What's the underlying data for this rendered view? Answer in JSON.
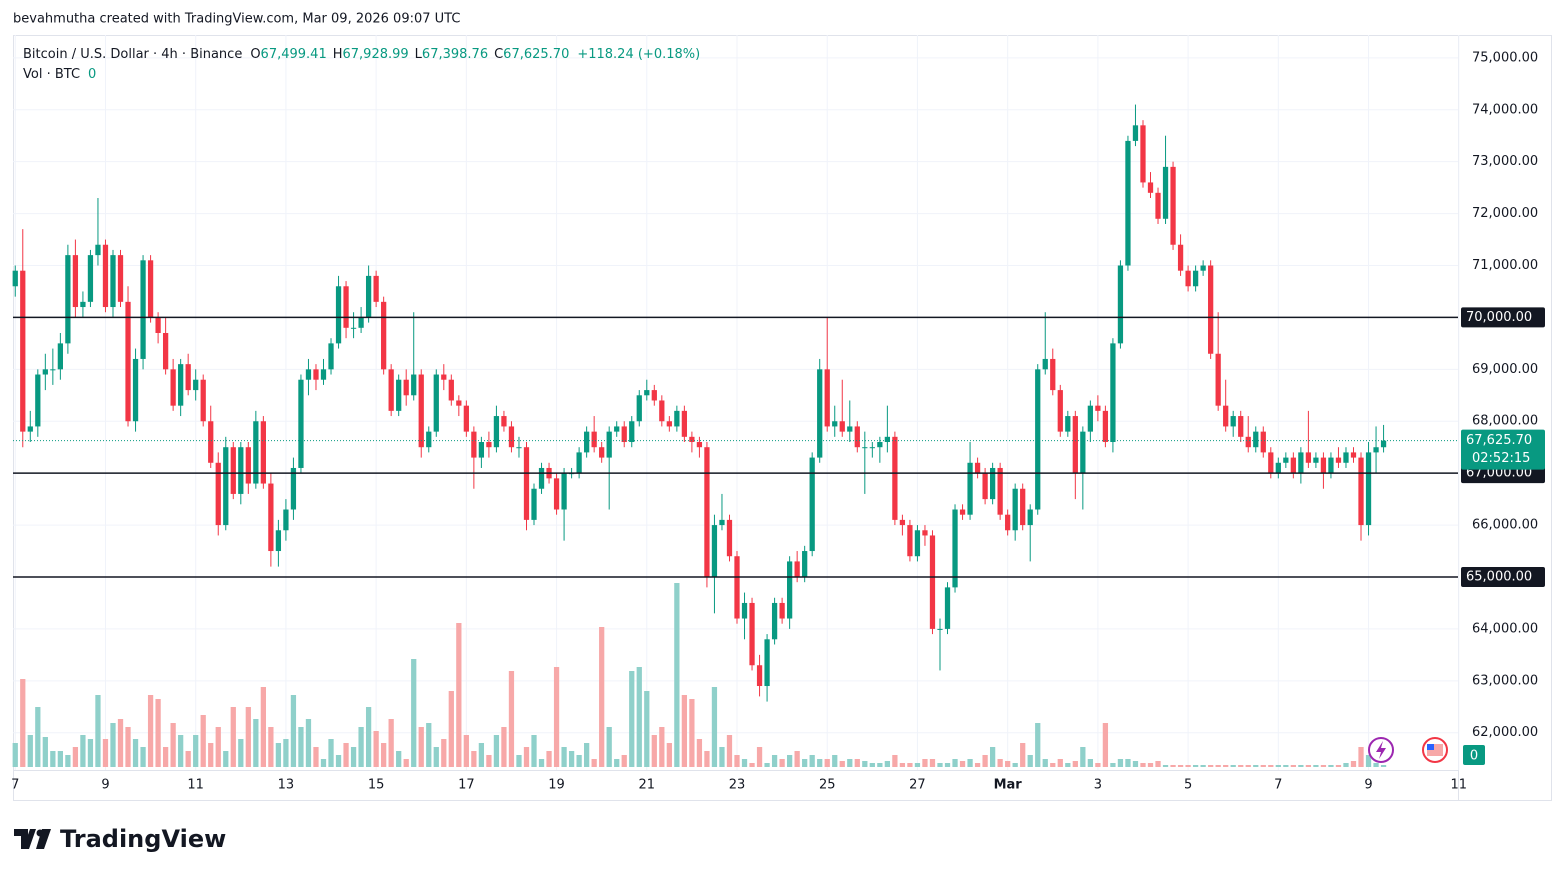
{
  "header": {
    "attribution": "bevahmutha created with TradingView.com, Mar 09, 2026 09:07 UTC"
  },
  "chart_data": {
    "type": "candlestick",
    "title": "Bitcoin / U.S. Dollar · 4h · Binance",
    "ohlc_labels": [
      "O",
      "H",
      "L",
      "C"
    ],
    "ohlc_values": [
      "67,499.41",
      "67,928.99",
      "67,398.76",
      "67,625.70"
    ],
    "change": "+118.24 (+0.18%)",
    "volume_title": "Vol · BTC",
    "volume_value": "0",
    "up_color": "#089981",
    "down_color": "#f23645",
    "up_volume_color": "#8fd0ca",
    "down_volume_color": "#f7a8a8",
    "grid": true,
    "candles": [
      [
        70600,
        71000,
        70400,
        70900
      ],
      [
        70900,
        71700,
        67500,
        67800
      ],
      [
        67800,
        68200,
        67600,
        67900
      ],
      [
        67900,
        69000,
        67700,
        68900
      ],
      [
        68900,
        69300,
        68600,
        69000
      ],
      [
        69000,
        69400,
        68700,
        69000
      ],
      [
        69000,
        69700,
        68800,
        69500
      ],
      [
        69500,
        71400,
        69300,
        71200
      ],
      [
        71200,
        71500,
        70000,
        70200
      ],
      [
        70200,
        70500,
        70000,
        70300
      ],
      [
        70300,
        71300,
        70200,
        71200
      ],
      [
        71200,
        72300,
        71000,
        71400
      ],
      [
        71400,
        71500,
        70100,
        70200
      ],
      [
        70200,
        71300,
        70000,
        71200
      ],
      [
        71200,
        71300,
        70200,
        70300
      ],
      [
        70300,
        70600,
        67900,
        68000
      ],
      [
        68000,
        69400,
        67800,
        69200
      ],
      [
        69200,
        71200,
        69000,
        71100
      ],
      [
        71100,
        71200,
        69900,
        70000
      ],
      [
        70000,
        70100,
        69500,
        69700
      ],
      [
        69700,
        70000,
        68900,
        69000
      ],
      [
        69000,
        69200,
        68200,
        68300
      ],
      [
        68300,
        69200,
        68100,
        69100
      ],
      [
        69100,
        69300,
        68500,
        68600
      ],
      [
        68600,
        69000,
        68400,
        68800
      ],
      [
        68800,
        68900,
        67900,
        68000
      ],
      [
        68000,
        68300,
        67100,
        67200
      ],
      [
        67200,
        67400,
        65800,
        66000
      ],
      [
        66000,
        67700,
        65900,
        67500
      ],
      [
        67500,
        67600,
        66500,
        66600
      ],
      [
        66600,
        67600,
        66400,
        67500
      ],
      [
        67500,
        67600,
        66600,
        66800
      ],
      [
        66800,
        68200,
        66700,
        68000
      ],
      [
        68000,
        68100,
        66700,
        66800
      ],
      [
        66800,
        67000,
        65200,
        65500
      ],
      [
        65500,
        66100,
        65200,
        65900
      ],
      [
        65900,
        66500,
        65700,
        66300
      ],
      [
        66300,
        67300,
        66100,
        67100
      ],
      [
        67100,
        68900,
        67000,
        68800
      ],
      [
        68800,
        69200,
        68500,
        69000
      ],
      [
        69000,
        69100,
        68600,
        68800
      ],
      [
        68800,
        69200,
        68700,
        69000
      ],
      [
        69000,
        69600,
        68900,
        69500
      ],
      [
        69500,
        70800,
        69400,
        70600
      ],
      [
        70600,
        70700,
        69600,
        69800
      ],
      [
        69800,
        70100,
        69600,
        69800
      ],
      [
        69800,
        70200,
        69700,
        70000
      ],
      [
        70000,
        71000,
        69900,
        70800
      ],
      [
        70800,
        70900,
        70200,
        70300
      ],
      [
        70300,
        70400,
        68900,
        69000
      ],
      [
        69000,
        69100,
        68100,
        68200
      ],
      [
        68200,
        68900,
        68100,
        68800
      ],
      [
        68800,
        69000,
        68300,
        68500
      ],
      [
        68500,
        70100,
        68400,
        68900
      ],
      [
        68900,
        69000,
        67300,
        67500
      ],
      [
        67500,
        67900,
        67400,
        67800
      ],
      [
        67800,
        69000,
        67700,
        68900
      ],
      [
        68900,
        69100,
        68600,
        68800
      ],
      [
        68800,
        68900,
        68300,
        68400
      ],
      [
        68400,
        68500,
        68100,
        68300
      ],
      [
        68300,
        68400,
        67700,
        67800
      ],
      [
        67800,
        67900,
        66700,
        67300
      ],
      [
        67300,
        67700,
        67100,
        67600
      ],
      [
        67600,
        67800,
        67300,
        67500
      ],
      [
        67500,
        68300,
        67400,
        68100
      ],
      [
        68100,
        68200,
        67800,
        67900
      ],
      [
        67900,
        68000,
        67400,
        67500
      ],
      [
        67500,
        67700,
        67300,
        67500
      ],
      [
        67500,
        67600,
        65900,
        66100
      ],
      [
        66100,
        66800,
        66000,
        66700
      ],
      [
        66700,
        67200,
        66600,
        67100
      ],
      [
        67100,
        67200,
        66800,
        66900
      ],
      [
        66900,
        67000,
        66200,
        66300
      ],
      [
        66300,
        67100,
        65700,
        67000
      ],
      [
        67000,
        67100,
        66900,
        67000
      ],
      [
        67000,
        67500,
        66900,
        67400
      ],
      [
        67400,
        67900,
        67300,
        67800
      ],
      [
        67800,
        68100,
        67400,
        67500
      ],
      [
        67500,
        67600,
        67200,
        67300
      ],
      [
        67300,
        67900,
        66300,
        67800
      ],
      [
        67800,
        68000,
        67700,
        67900
      ],
      [
        67900,
        68000,
        67500,
        67600
      ],
      [
        67600,
        68100,
        67500,
        68000
      ],
      [
        68000,
        68600,
        67900,
        68500
      ],
      [
        68500,
        68800,
        68400,
        68600
      ],
      [
        68600,
        68700,
        68300,
        68400
      ],
      [
        68400,
        68500,
        67900,
        68000
      ],
      [
        68000,
        68100,
        67800,
        67900
      ],
      [
        67900,
        68300,
        67800,
        68200
      ],
      [
        68200,
        68300,
        67600,
        67700
      ],
      [
        67700,
        67800,
        67400,
        67600
      ],
      [
        67600,
        67700,
        67300,
        67500
      ],
      [
        67500,
        67600,
        64800,
        65000
      ],
      [
        65000,
        66200,
        64300,
        66000
      ],
      [
        66000,
        66600,
        65900,
        66100
      ],
      [
        66100,
        66200,
        65300,
        65400
      ],
      [
        65400,
        65500,
        64100,
        64200
      ],
      [
        64200,
        64700,
        63800,
        64500
      ],
      [
        64500,
        64600,
        63200,
        63300
      ],
      [
        63300,
        63500,
        62700,
        62900
      ],
      [
        62900,
        63900,
        62600,
        63800
      ],
      [
        63800,
        64600,
        63700,
        64500
      ],
      [
        64500,
        64600,
        64100,
        64200
      ],
      [
        64200,
        65400,
        64000,
        65300
      ],
      [
        65300,
        65500,
        64900,
        65000
      ],
      [
        65000,
        65600,
        64900,
        65500
      ],
      [
        65500,
        67400,
        65400,
        67300
      ],
      [
        67300,
        69200,
        67200,
        69000
      ],
      [
        69000,
        70000,
        67800,
        67900
      ],
      [
        67900,
        68300,
        67700,
        68000
      ],
      [
        68000,
        68800,
        67700,
        67800
      ],
      [
        67800,
        68400,
        67600,
        67900
      ],
      [
        67900,
        68000,
        67400,
        67500
      ],
      [
        67500,
        67800,
        66600,
        67500
      ],
      [
        67500,
        67600,
        67300,
        67500
      ],
      [
        67500,
        67700,
        67200,
        67600
      ],
      [
        67600,
        68300,
        67400,
        67700
      ],
      [
        67700,
        67800,
        66000,
        66100
      ],
      [
        66100,
        66200,
        65800,
        66000
      ],
      [
        66000,
        66100,
        65300,
        65400
      ],
      [
        65400,
        66000,
        65300,
        65900
      ],
      [
        65900,
        66000,
        65600,
        65800
      ],
      [
        65800,
        65900,
        63900,
        64000
      ],
      [
        64000,
        64200,
        63200,
        64000
      ],
      [
        64000,
        64900,
        63900,
        64800
      ],
      [
        64800,
        66400,
        64700,
        66300
      ],
      [
        66300,
        66400,
        66100,
        66200
      ],
      [
        66200,
        67600,
        66100,
        67200
      ],
      [
        67200,
        67300,
        66900,
        67000
      ],
      [
        67000,
        67100,
        66400,
        66500
      ],
      [
        66500,
        67200,
        66400,
        67100
      ],
      [
        67100,
        67200,
        66100,
        66200
      ],
      [
        66200,
        66300,
        65800,
        65900
      ],
      [
        65900,
        66800,
        65700,
        66700
      ],
      [
        66700,
        66800,
        65900,
        66000
      ],
      [
        66000,
        66400,
        65300,
        66300
      ],
      [
        66300,
        69100,
        66200,
        69000
      ],
      [
        69000,
        70100,
        68900,
        69200
      ],
      [
        69200,
        69400,
        68500,
        68600
      ],
      [
        68600,
        68700,
        67700,
        67800
      ],
      [
        67800,
        68200,
        67700,
        68100
      ],
      [
        68100,
        68200,
        66500,
        67000
      ],
      [
        67000,
        67900,
        66300,
        67800
      ],
      [
        67800,
        68400,
        67600,
        68300
      ],
      [
        68300,
        68500,
        68000,
        68200
      ],
      [
        68200,
        68300,
        67500,
        67600
      ],
      [
        67600,
        69600,
        67400,
        69500
      ],
      [
        69500,
        71100,
        69400,
        71000
      ],
      [
        71000,
        73500,
        70900,
        73400
      ],
      [
        73400,
        74100,
        73300,
        73700
      ],
      [
        73700,
        73800,
        72500,
        72600
      ],
      [
        72600,
        72800,
        72300,
        72400
      ],
      [
        72400,
        72500,
        71800,
        71900
      ],
      [
        71900,
        73500,
        71800,
        72900
      ],
      [
        72900,
        73000,
        71300,
        71400
      ],
      [
        71400,
        71600,
        70800,
        70900
      ],
      [
        70900,
        71000,
        70500,
        70600
      ],
      [
        70600,
        71000,
        70500,
        70900
      ],
      [
        70900,
        71100,
        70800,
        71000
      ],
      [
        71000,
        71100,
        69200,
        69300
      ],
      [
        69300,
        70100,
        68200,
        68300
      ],
      [
        68300,
        68800,
        67800,
        67900
      ],
      [
        67900,
        68200,
        67700,
        68100
      ],
      [
        68100,
        68200,
        67600,
        67700
      ],
      [
        67700,
        68100,
        67400,
        67500
      ],
      [
        67500,
        67900,
        67400,
        67800
      ],
      [
        67800,
        67900,
        67300,
        67400
      ],
      [
        67400,
        67500,
        66900,
        67000
      ],
      [
        67000,
        67300,
        66900,
        67200
      ],
      [
        67200,
        67400,
        67100,
        67300
      ],
      [
        67300,
        67400,
        66900,
        67000
      ],
      [
        67000,
        67500,
        66800,
        67400
      ],
      [
        67400,
        68200,
        67100,
        67200
      ],
      [
        67200,
        67400,
        67100,
        67300
      ],
      [
        67300,
        67400,
        66700,
        67000
      ],
      [
        67000,
        67400,
        66900,
        67300
      ],
      [
        67300,
        67500,
        67100,
        67200
      ],
      [
        67200,
        67500,
        67100,
        67400
      ],
      [
        67400,
        67500,
        67200,
        67300
      ],
      [
        67300,
        67400,
        65700,
        66000
      ],
      [
        66000,
        67600,
        65800,
        67400
      ],
      [
        67400,
        67900,
        67000,
        67499.41
      ],
      [
        67499.41,
        67928.99,
        67398.76,
        67625.7
      ]
    ],
    "volume": [
      12,
      44,
      16,
      30,
      15,
      8,
      8,
      6,
      10,
      16,
      14,
      36,
      14,
      22,
      24,
      20,
      14,
      10,
      36,
      34,
      10,
      22,
      16,
      8,
      16,
      26,
      12,
      20,
      8,
      30,
      14,
      30,
      24,
      40,
      20,
      12,
      14,
      36,
      20,
      24,
      10,
      4,
      14,
      6,
      12,
      10,
      20,
      30,
      18,
      12,
      24,
      8,
      4,
      54,
      20,
      22,
      10,
      14,
      38,
      72,
      16,
      8,
      12,
      6,
      16,
      20,
      48,
      6,
      10,
      16,
      4,
      8,
      50,
      10,
      8,
      6,
      12,
      4,
      70,
      20,
      4,
      6,
      48,
      50,
      38,
      16,
      20,
      12,
      92,
      36,
      34,
      14,
      8,
      40,
      10,
      16,
      6,
      4,
      2,
      10,
      2,
      6,
      4,
      6,
      8,
      4,
      6,
      4,
      4,
      6,
      3,
      4,
      4,
      3,
      2,
      2,
      3,
      6,
      2,
      2,
      2,
      4,
      4,
      2,
      2,
      4,
      3,
      4,
      2,
      6,
      10,
      4,
      3,
      2,
      12,
      6,
      22,
      4,
      2,
      4,
      2,
      3,
      10,
      4,
      2,
      22,
      2,
      4,
      4,
      3,
      2,
      2,
      3,
      1,
      1,
      1,
      1,
      1,
      1,
      1,
      1,
      1,
      1,
      1,
      1,
      1,
      1,
      1,
      1,
      1,
      1,
      1,
      1,
      1,
      1,
      1,
      1,
      2,
      3,
      10,
      6,
      2,
      1
    ],
    "vlim": [
      0,
      100
    ],
    "xlim": [
      -0.3,
      191.9
    ],
    "xticks": [
      {
        "value": 0,
        "label": "7"
      },
      {
        "value": 12,
        "label": "9"
      },
      {
        "value": 24,
        "label": "11"
      },
      {
        "value": 36,
        "label": "13"
      },
      {
        "value": 48,
        "label": "15"
      },
      {
        "value": 60,
        "label": "17"
      },
      {
        "value": 72,
        "label": "19"
      },
      {
        "value": 84,
        "label": "21"
      },
      {
        "value": 96,
        "label": "23"
      },
      {
        "value": 108,
        "label": "25"
      },
      {
        "value": 120,
        "label": "27"
      },
      {
        "value": 132,
        "label": "Mar"
      },
      {
        "value": 144,
        "label": "3"
      },
      {
        "value": 156,
        "label": "5"
      },
      {
        "value": 168,
        "label": "7"
      },
      {
        "value": 180,
        "label": "9"
      },
      {
        "value": 192,
        "label": "11"
      }
    ],
    "ylim": [
      61340,
      75440
    ],
    "yticks": [
      {
        "value": 62000,
        "label": "62,000.00"
      },
      {
        "value": 63000,
        "label": "63,000.00"
      },
      {
        "value": 64000,
        "label": "64,000.00"
      },
      {
        "value": 65000,
        "label": "65,000.00"
      },
      {
        "value": 66000,
        "label": "66,000.00"
      },
      {
        "value": 67000,
        "label": "67,000.00"
      },
      {
        "value": 68000,
        "label": "68,000.00"
      },
      {
        "value": 69000,
        "label": "69,000.00"
      },
      {
        "value": 70000,
        "label": "70,000.00"
      },
      {
        "value": 71000,
        "label": "71,000.00"
      },
      {
        "value": 72000,
        "label": "72,000.00"
      },
      {
        "value": 73000,
        "label": "73,000.00"
      },
      {
        "value": 74000,
        "label": "74,000.00"
      },
      {
        "value": 75000,
        "label": "75,000.00"
      }
    ],
    "hlines": [
      {
        "value": 70000,
        "label": "70,000.00"
      },
      {
        "value": 67000,
        "label": "67,000.00"
      },
      {
        "value": 65000,
        "label": "65,000.00"
      }
    ],
    "last_price": {
      "value": 67625.7,
      "label": "67,625.70"
    },
    "countdown": "02:52:15"
  },
  "footer": {
    "logo": "TradingView"
  }
}
